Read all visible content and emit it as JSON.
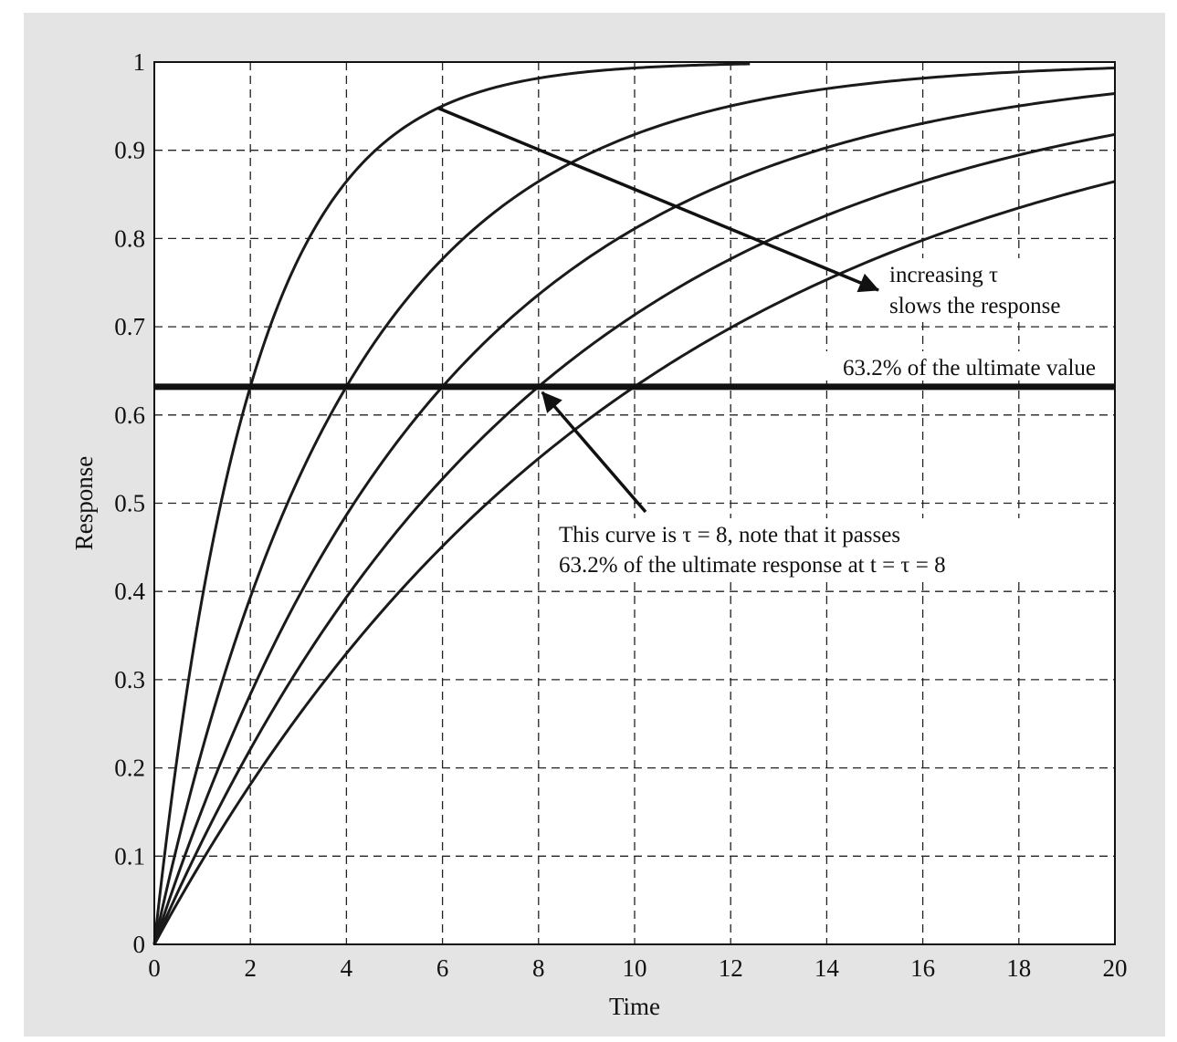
{
  "chart_data": {
    "type": "line",
    "xlabel": "Time",
    "ylabel": "Response",
    "xlim": [
      0,
      20
    ],
    "ylim": [
      0,
      1
    ],
    "xticks": [
      "0",
      "2",
      "4",
      "6",
      "8",
      "10",
      "12",
      "14",
      "16",
      "18",
      "20"
    ],
    "yticks": [
      "0",
      "0.1",
      "0.2",
      "0.3",
      "0.4",
      "0.5",
      "0.6",
      "0.7",
      "0.8",
      "0.9",
      "1"
    ],
    "grid": true,
    "grid_style": "dashed",
    "model": "1 - exp(-t/tau)",
    "series": [
      {
        "tau": 2,
        "x_max": 12.4
      },
      {
        "tau": 4,
        "x_max": 20
      },
      {
        "tau": 6,
        "x_max": 20
      },
      {
        "tau": 8,
        "x_max": 20
      },
      {
        "tau": 10,
        "x_max": 20
      }
    ],
    "reference_line": {
      "y": 0.632,
      "label": "63.2% of the ultimate value"
    },
    "annotations": [
      {
        "lines": [
          "increasing τ",
          "slows the response"
        ],
        "arrow_from": [
          5.9,
          0.948
        ],
        "arrow_to": [
          15.0,
          0.745
        ]
      },
      {
        "lines": [
          "This curve is τ = 8, note that it passes",
          "63.2% of the ultimate response at t = τ = 8"
        ],
        "arrow_from": [
          10.2,
          0.5
        ],
        "arrow_to": [
          8.0,
          0.632
        ]
      }
    ]
  }
}
